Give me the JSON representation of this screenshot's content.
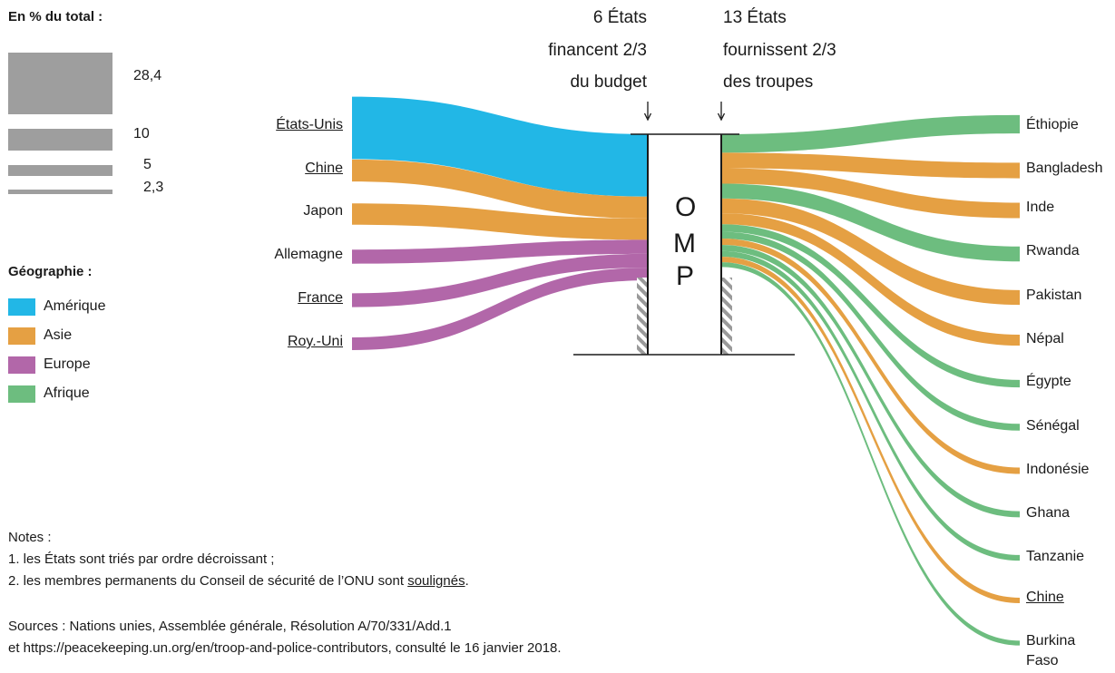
{
  "legend": {
    "size_title": "En % du total :",
    "sizes": [
      "28,4",
      "10",
      "5",
      "2,3"
    ],
    "geo_title": "Géographie :",
    "regions": [
      {
        "label": "Amérique",
        "color": "#22b7e6"
      },
      {
        "label": "Asie",
        "color": "#e5a043"
      },
      {
        "label": "Europe",
        "color": "#b267a9"
      },
      {
        "label": "Afrique",
        "color": "#6dbd7f"
      }
    ]
  },
  "header": {
    "left_lines": [
      "6 États",
      "financent 2/3",
      "du budget"
    ],
    "right_lines": [
      "13 États",
      "fournissent 2/3",
      "des troupes"
    ]
  },
  "center": {
    "letters": [
      "O",
      "M",
      "P"
    ]
  },
  "funders": [
    {
      "name": "États-Unis",
      "share": 28.4,
      "region": "Amérique",
      "permanent": true
    },
    {
      "name": "Chine",
      "share": 10,
      "region": "Asie",
      "permanent": true
    },
    {
      "name": "Japon",
      "share": 9.7,
      "region": "Asie",
      "permanent": false
    },
    {
      "name": "Allemagne",
      "share": 6.4,
      "region": "Europe",
      "permanent": false
    },
    {
      "name": "France",
      "share": 6.3,
      "region": "Europe",
      "permanent": true
    },
    {
      "name": "Roy.-Uni",
      "share": 5.8,
      "region": "Europe",
      "permanent": true
    }
  ],
  "contributors": [
    {
      "name": "Éthiopie",
      "share": 8.4,
      "region": "Afrique",
      "permanent": false
    },
    {
      "name": "Bangladesh",
      "share": 7.1,
      "region": "Asie",
      "permanent": false
    },
    {
      "name": "Inde",
      "share": 7.0,
      "region": "Asie",
      "permanent": false
    },
    {
      "name": "Rwanda",
      "share": 6.8,
      "region": "Afrique",
      "permanent": false
    },
    {
      "name": "Pakistan",
      "share": 6.7,
      "region": "Asie",
      "permanent": false
    },
    {
      "name": "Népal",
      "share": 5.0,
      "region": "Asie",
      "permanent": false
    },
    {
      "name": "Égypte",
      "share": 3.4,
      "region": "Afrique",
      "permanent": false
    },
    {
      "name": "Sénégal",
      "share": 3.1,
      "region": "Afrique",
      "permanent": false
    },
    {
      "name": "Indonésie",
      "share": 2.9,
      "region": "Asie",
      "permanent": false
    },
    {
      "name": "Ghana",
      "share": 2.8,
      "region": "Afrique",
      "permanent": false
    },
    {
      "name": "Tanzanie",
      "share": 2.6,
      "region": "Afrique",
      "permanent": false
    },
    {
      "name": "Chine",
      "share": 2.5,
      "region": "Asie",
      "permanent": true
    },
    {
      "name": [
        "Burkina",
        "Faso"
      ],
      "share": 2.2,
      "region": "Afrique",
      "permanent": false
    }
  ],
  "notes": {
    "title": "Notes :",
    "line1": "1. les États sont triés par ordre décroissant ;",
    "line2_pre": "2. les membres permanents du Conseil de sécurité de l’ONU sont ",
    "line2_u": "soulignés",
    "line2_post": "."
  },
  "sources": {
    "line1": "Sources : Nations unies, Assemblée générale, Résolution A/70/331/Add.1",
    "line2": "et https://peacekeeping.un.org/en/troop-and-police-contributors, consulté le 16 janvier 2018."
  }
}
